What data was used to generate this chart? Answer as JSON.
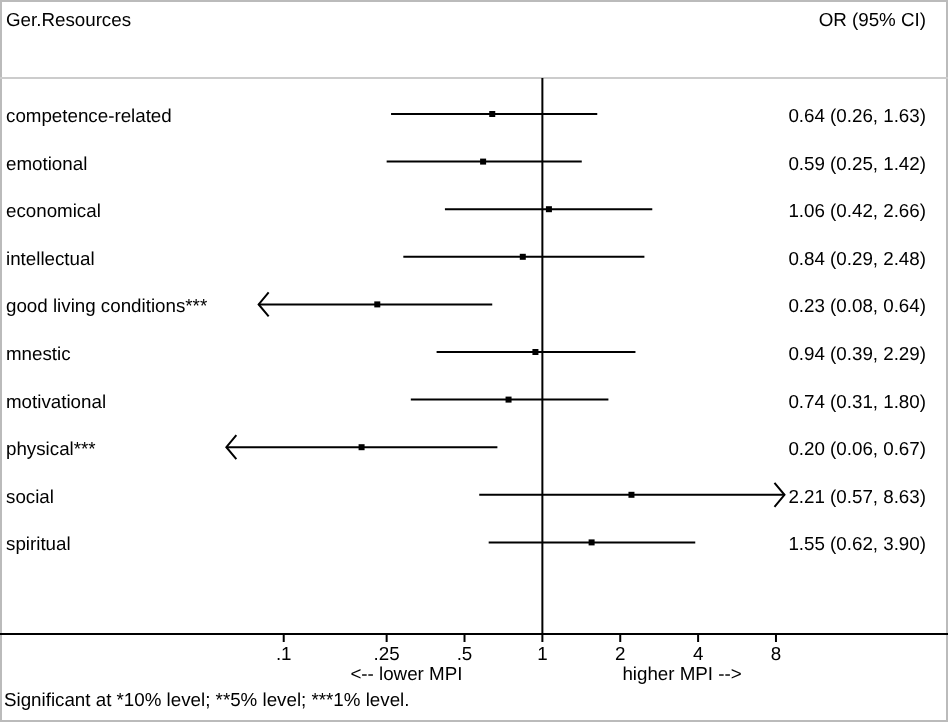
{
  "chart_data": {
    "type": "scatter",
    "orientation": "horizontal",
    "ylabel": "Ger.Resources",
    "categories": [
      "competence-related",
      "emotional",
      "economical",
      "intellectual",
      "good living conditions***",
      "mnestic",
      "motivational",
      "physical***",
      "social",
      "spiritual"
    ],
    "values": [
      0.64,
      0.59,
      1.06,
      0.84,
      0.23,
      0.94,
      0.74,
      0.2,
      2.21,
      1.55
    ],
    "errors": [
      [
        0.26,
        1.63
      ],
      [
        0.25,
        1.42
      ],
      [
        0.42,
        2.66
      ],
      [
        0.29,
        2.48
      ],
      [
        0.08,
        0.64
      ],
      [
        0.39,
        2.29
      ],
      [
        0.31,
        1.8
      ],
      [
        0.06,
        0.67
      ],
      [
        0.57,
        8.63
      ],
      [
        0.62,
        3.9
      ]
    ],
    "color": "#000000",
    "marker": "square",
    "log": "x",
    "xlim": [
      0.008,
      37
    ],
    "xticks": [
      {
        "value": 0.1,
        "label": ".1"
      },
      {
        "value": 0.25,
        "label": ".25"
      },
      {
        "value": 0.5,
        "label": ".5"
      },
      1,
      2,
      4,
      8
    ],
    "ref_lines": [
      {
        "axis": "x",
        "value": 1,
        "color": "#000000"
      }
    ],
    "annotations": [
      "OR (95% CI)",
      "<-- lower MPI",
      "higher MPI -->",
      "Significant at *10% level; **5% level; ***1% level.",
      "0.64 (0.26, 1.63)",
      "0.59 (0.25, 1.42)",
      "1.06 (0.42, 2.66)",
      "0.84 (0.29, 2.48)",
      "0.23 (0.08, 0.64)",
      "0.94 (0.39, 2.29)",
      "0.74 (0.31, 1.80)",
      "0.20 (0.06, 0.67)",
      "2.21 (0.57, 8.63)",
      "1.55 (0.62, 3.90)"
    ]
  }
}
